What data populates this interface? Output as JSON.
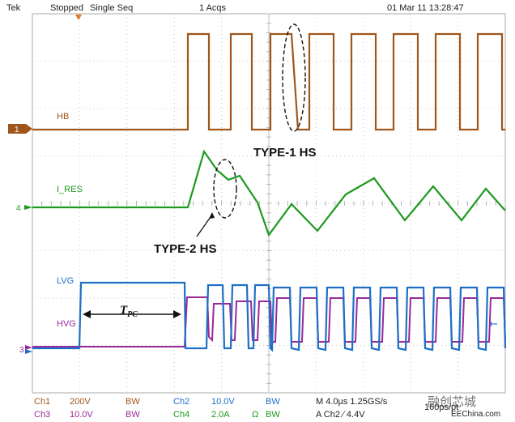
{
  "header": {
    "brand": "Tek",
    "status": "Stopped",
    "mode": "Single Seq",
    "acqs": "1 Acqs",
    "datetime": "01 Mar 11 13:28:47"
  },
  "channels": {
    "hb": {
      "name": "HB",
      "marker": "1",
      "color": "#a0561a"
    },
    "ires": {
      "name": "I_RES",
      "marker": "4",
      "color": "#1e9a1e"
    },
    "lvg": {
      "name": "LVG",
      "color": "#1f6fc4"
    },
    "hvg": {
      "name": "HVG",
      "marker": "3",
      "color": "#9a2a9a"
    }
  },
  "annotations": {
    "type1": "TYPE-1 HS",
    "type2": "TYPE-2 HS",
    "tpc_main": "T",
    "tpc_sub": "PC"
  },
  "footer": {
    "ch1_name": "Ch1",
    "ch1_scale": "200V",
    "ch1_bw": "BW",
    "ch2_name": "Ch2",
    "ch2_scale": "10.0V",
    "ch2_bw": "BW",
    "ch3_name": "Ch3",
    "ch3_scale": "10.0V",
    "ch3_bw": "BW",
    "ch4_name": "Ch4",
    "ch4_scale": "2.0A",
    "ch4_ohm": "Ω",
    "ch4_bw": "BW",
    "timebase": "M 4.0µs 1.25GS/s",
    "record": "160ps/pt",
    "trigger": "A  Ch2  ⁄  4.4V",
    "watermark": "融创芯城",
    "site": "EEChina.com"
  }
}
